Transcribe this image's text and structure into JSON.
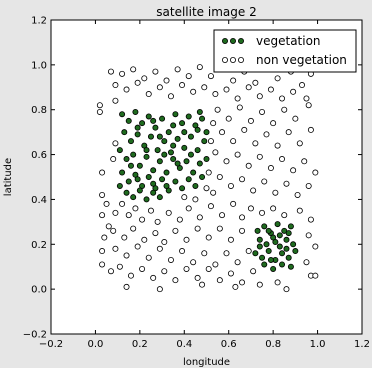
{
  "chart_data": {
    "type": "scatter",
    "title": "satellite image 2",
    "xlabel": "longitude",
    "ylabel": "latitude",
    "xlim": [
      -0.2,
      1.2
    ],
    "ylim": [
      -0.2,
      1.2
    ],
    "xticks": [
      "−0.2",
      "0.0",
      "0.2",
      "0.4",
      "0.6",
      "0.8",
      "1.0",
      "1.2"
    ],
    "yticks": [
      "−0.2",
      "0.0",
      "0.2",
      "0.4",
      "0.6",
      "0.8",
      "1.0",
      "1.2"
    ],
    "grid": false,
    "legend_placement": "top-right",
    "series": [
      {
        "name": "vegetation",
        "color": "#1f6b1f",
        "marker": "filled-circle",
        "points": [
          [
            0.12,
            0.78
          ],
          [
            0.15,
            0.75
          ],
          [
            0.18,
            0.79
          ],
          [
            0.21,
            0.74
          ],
          [
            0.24,
            0.77
          ],
          [
            0.27,
            0.72
          ],
          [
            0.3,
            0.76
          ],
          [
            0.33,
            0.7
          ],
          [
            0.36,
            0.78
          ],
          [
            0.39,
            0.74
          ],
          [
            0.42,
            0.77
          ],
          [
            0.45,
            0.73
          ],
          [
            0.48,
            0.76
          ],
          [
            0.13,
            0.7
          ],
          [
            0.16,
            0.66
          ],
          [
            0.19,
            0.69
          ],
          [
            0.22,
            0.64
          ],
          [
            0.25,
            0.68
          ],
          [
            0.28,
            0.62
          ],
          [
            0.31,
            0.66
          ],
          [
            0.34,
            0.61
          ],
          [
            0.37,
            0.67
          ],
          [
            0.4,
            0.63
          ],
          [
            0.43,
            0.68
          ],
          [
            0.46,
            0.62
          ],
          [
            0.49,
            0.66
          ],
          [
            0.11,
            0.62
          ],
          [
            0.14,
            0.58
          ],
          [
            0.17,
            0.6
          ],
          [
            0.2,
            0.55
          ],
          [
            0.23,
            0.59
          ],
          [
            0.26,
            0.53
          ],
          [
            0.29,
            0.57
          ],
          [
            0.32,
            0.52
          ],
          [
            0.35,
            0.58
          ],
          [
            0.38,
            0.54
          ],
          [
            0.41,
            0.57
          ],
          [
            0.44,
            0.52
          ],
          [
            0.47,
            0.56
          ],
          [
            0.12,
            0.52
          ],
          [
            0.15,
            0.48
          ],
          [
            0.18,
            0.51
          ],
          [
            0.21,
            0.46
          ],
          [
            0.24,
            0.5
          ],
          [
            0.27,
            0.45
          ],
          [
            0.3,
            0.49
          ],
          [
            0.33,
            0.44
          ],
          [
            0.36,
            0.48
          ],
          [
            0.14,
            0.43
          ],
          [
            0.17,
            0.41
          ],
          [
            0.2,
            0.44
          ],
          [
            0.23,
            0.4
          ],
          [
            0.26,
            0.43
          ],
          [
            0.29,
            0.41
          ],
          [
            0.32,
            0.46
          ],
          [
            0.39,
            0.45
          ],
          [
            0.42,
            0.49
          ],
          [
            0.45,
            0.46
          ],
          [
            0.48,
            0.5
          ],
          [
            0.5,
            0.7
          ],
          [
            0.5,
            0.58
          ],
          [
            0.47,
            0.79
          ],
          [
            0.19,
            0.72
          ],
          [
            0.26,
            0.75
          ],
          [
            0.35,
            0.73
          ],
          [
            0.4,
            0.7
          ],
          [
            0.29,
            0.68
          ],
          [
            0.23,
            0.62
          ],
          [
            0.16,
            0.55
          ],
          [
            0.31,
            0.6
          ],
          [
            0.37,
            0.56
          ],
          [
            0.43,
            0.6
          ],
          [
            0.19,
            0.49
          ],
          [
            0.26,
            0.47
          ],
          [
            0.11,
            0.46
          ],
          [
            0.35,
            0.64
          ],
          [
            0.46,
            0.71
          ],
          [
            0.73,
            0.26
          ],
          [
            0.76,
            0.28
          ],
          [
            0.79,
            0.25
          ],
          [
            0.82,
            0.29
          ],
          [
            0.85,
            0.26
          ],
          [
            0.88,
            0.28
          ],
          [
            0.74,
            0.22
          ],
          [
            0.77,
            0.2
          ],
          [
            0.8,
            0.23
          ],
          [
            0.83,
            0.19
          ],
          [
            0.86,
            0.22
          ],
          [
            0.89,
            0.2
          ],
          [
            0.72,
            0.16
          ],
          [
            0.75,
            0.14
          ],
          [
            0.78,
            0.17
          ],
          [
            0.81,
            0.13
          ],
          [
            0.84,
            0.16
          ],
          [
            0.87,
            0.14
          ],
          [
            0.9,
            0.17
          ],
          [
            0.76,
            0.11
          ],
          [
            0.8,
            0.09
          ],
          [
            0.84,
            0.11
          ],
          [
            0.88,
            0.1
          ],
          [
            0.78,
            0.26
          ],
          [
            0.81,
            0.21
          ],
          [
            0.86,
            0.18
          ],
          [
            0.74,
            0.19
          ],
          [
            0.83,
            0.24
          ],
          [
            0.87,
            0.25
          ],
          [
            0.79,
            0.13
          ]
        ]
      },
      {
        "name": "non vegetation",
        "color": "#ffffff",
        "marker": "open-circle",
        "points": [
          [
            0.07,
            0.97
          ],
          [
            0.12,
            0.96
          ],
          [
            0.17,
            0.98
          ],
          [
            0.22,
            0.94
          ],
          [
            0.27,
            0.97
          ],
          [
            0.32,
            0.93
          ],
          [
            0.37,
            0.98
          ],
          [
            0.42,
            0.95
          ],
          [
            0.47,
            0.99
          ],
          [
            0.52,
            0.95
          ],
          [
            0.57,
            0.98
          ],
          [
            0.62,
            0.93
          ],
          [
            0.67,
            0.97
          ],
          [
            0.72,
            0.92
          ],
          [
            0.77,
            0.98
          ],
          [
            0.82,
            0.94
          ],
          [
            0.88,
            0.97
          ],
          [
            0.93,
            0.91
          ],
          [
            0.97,
            0.96
          ],
          [
            0.09,
            0.91
          ],
          [
            0.14,
            0.89
          ],
          [
            0.19,
            0.92
          ],
          [
            0.24,
            0.87
          ],
          [
            0.29,
            0.9
          ],
          [
            0.34,
            0.86
          ],
          [
            0.39,
            0.91
          ],
          [
            0.44,
            0.88
          ],
          [
            0.49,
            0.9
          ],
          [
            0.54,
            0.87
          ],
          [
            0.59,
            0.89
          ],
          [
            0.64,
            0.85
          ],
          [
            0.69,
            0.9
          ],
          [
            0.74,
            0.86
          ],
          [
            0.79,
            0.89
          ],
          [
            0.84,
            0.85
          ],
          [
            0.89,
            0.88
          ],
          [
            0.95,
            0.85
          ],
          [
            0.02,
            0.82
          ],
          [
            0.02,
            0.79
          ],
          [
            0.09,
            0.84
          ],
          [
            0.55,
            0.8
          ],
          [
            0.6,
            0.76
          ],
          [
            0.65,
            0.81
          ],
          [
            0.7,
            0.75
          ],
          [
            0.75,
            0.79
          ],
          [
            0.8,
            0.74
          ],
          [
            0.85,
            0.8
          ],
          [
            0.9,
            0.76
          ],
          [
            0.96,
            0.82
          ],
          [
            0.57,
            0.7
          ],
          [
            0.62,
            0.66
          ],
          [
            0.67,
            0.71
          ],
          [
            0.72,
            0.65
          ],
          [
            0.77,
            0.69
          ],
          [
            0.82,
            0.64
          ],
          [
            0.87,
            0.7
          ],
          [
            0.92,
            0.65
          ],
          [
            0.97,
            0.71
          ],
          [
            0.54,
            0.61
          ],
          [
            0.59,
            0.57
          ],
          [
            0.64,
            0.6
          ],
          [
            0.69,
            0.55
          ],
          [
            0.74,
            0.59
          ],
          [
            0.79,
            0.54
          ],
          [
            0.84,
            0.58
          ],
          [
            0.89,
            0.53
          ],
          [
            0.94,
            0.57
          ],
          [
            0.99,
            0.52
          ],
          [
            0.56,
            0.5
          ],
          [
            0.61,
            0.46
          ],
          [
            0.66,
            0.49
          ],
          [
            0.71,
            0.44
          ],
          [
            0.76,
            0.48
          ],
          [
            0.81,
            0.43
          ],
          [
            0.86,
            0.47
          ],
          [
            0.91,
            0.42
          ],
          [
            0.96,
            0.46
          ],
          [
            0.03,
            0.52
          ],
          [
            0.03,
            0.42
          ],
          [
            0.05,
            0.38
          ],
          [
            0.03,
            0.33
          ],
          [
            0.06,
            0.28
          ],
          [
            0.04,
            0.23
          ],
          [
            0.09,
            0.34
          ],
          [
            0.12,
            0.38
          ],
          [
            0.15,
            0.33
          ],
          [
            0.18,
            0.36
          ],
          [
            0.21,
            0.31
          ],
          [
            0.25,
            0.35
          ],
          [
            0.28,
            0.3
          ],
          [
            0.33,
            0.34
          ],
          [
            0.38,
            0.31
          ],
          [
            0.42,
            0.36
          ],
          [
            0.47,
            0.32
          ],
          [
            0.52,
            0.37
          ],
          [
            0.57,
            0.33
          ],
          [
            0.62,
            0.38
          ],
          [
            0.66,
            0.32
          ],
          [
            0.7,
            0.36
          ],
          [
            0.75,
            0.34
          ],
          [
            0.8,
            0.36
          ],
          [
            0.85,
            0.33
          ],
          [
            0.92,
            0.35
          ],
          [
            0.97,
            0.31
          ],
          [
            0.08,
            0.26
          ],
          [
            0.13,
            0.23
          ],
          [
            0.17,
            0.27
          ],
          [
            0.22,
            0.22
          ],
          [
            0.27,
            0.25
          ],
          [
            0.31,
            0.21
          ],
          [
            0.36,
            0.26
          ],
          [
            0.41,
            0.22
          ],
          [
            0.46,
            0.27
          ],
          [
            0.51,
            0.23
          ],
          [
            0.56,
            0.27
          ],
          [
            0.61,
            0.22
          ],
          [
            0.66,
            0.26
          ],
          [
            0.96,
            0.24
          ],
          [
            0.99,
            0.19
          ],
          [
            0.03,
            0.17
          ],
          [
            0.09,
            0.18
          ],
          [
            0.14,
            0.15
          ],
          [
            0.19,
            0.19
          ],
          [
            0.24,
            0.14
          ],
          [
            0.29,
            0.18
          ],
          [
            0.34,
            0.13
          ],
          [
            0.39,
            0.17
          ],
          [
            0.44,
            0.12
          ],
          [
            0.49,
            0.16
          ],
          [
            0.54,
            0.11
          ],
          [
            0.59,
            0.16
          ],
          [
            0.64,
            0.12
          ],
          [
            0.69,
            0.17
          ],
          [
            0.95,
            0.12
          ],
          [
            0.03,
            0.11
          ],
          [
            0.07,
            0.08
          ],
          [
            0.11,
            0.1
          ],
          [
            0.16,
            0.06
          ],
          [
            0.21,
            0.09
          ],
          [
            0.26,
            0.05
          ],
          [
            0.31,
            0.08
          ],
          [
            0.36,
            0.04
          ],
          [
            0.41,
            0.09
          ],
          [
            0.46,
            0.05
          ],
          [
            0.51,
            0.09
          ],
          [
            0.56,
            0.04
          ],
          [
            0.61,
            0.07
          ],
          [
            0.66,
            0.03
          ],
          [
            0.71,
            0.08
          ],
          [
            0.74,
            0.02
          ],
          [
            0.82,
            0.03
          ],
          [
            0.97,
            0.06
          ],
          [
            0.14,
            0.01
          ],
          [
            0.29,
            0.0
          ],
          [
            0.48,
            0.02
          ],
          [
            0.63,
            0.01
          ],
          [
            0.86,
            0.0
          ],
          [
            0.99,
            0.06
          ],
          [
            0.53,
            0.74
          ],
          [
            0.52,
            0.66
          ],
          [
            0.53,
            0.43
          ],
          [
            0.5,
            0.45
          ],
          [
            0.09,
            0.65
          ],
          [
            0.08,
            0.58
          ],
          [
            0.51,
            0.52
          ],
          [
            0.45,
            0.4
          ],
          [
            0.4,
            0.41
          ]
        ]
      }
    ]
  }
}
